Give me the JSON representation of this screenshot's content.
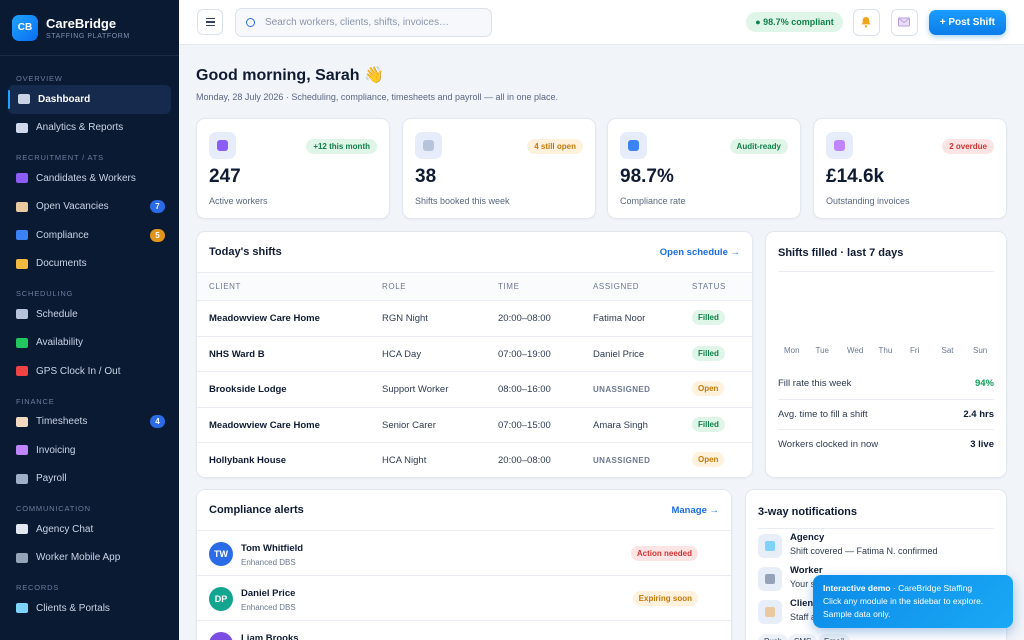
{
  "brand": {
    "initials": "CB",
    "name": "CareBridge",
    "subtitle": "STAFFING PLATFORM"
  },
  "sidebar": {
    "sections": [
      {
        "title": "OVERVIEW",
        "items": [
          {
            "label": "Dashboard",
            "icon": "dashboard-icon",
            "active": true
          },
          {
            "label": "Analytics & Reports",
            "icon": "chart-icon"
          }
        ]
      },
      {
        "title": "RECRUITMENT / ATS",
        "items": [
          {
            "label": "Candidates & Workers",
            "icon": "people-icon"
          },
          {
            "label": "Open Vacancies",
            "icon": "clipboard-icon",
            "badge": "7",
            "badge_color": "#2b6be8"
          },
          {
            "label": "Compliance",
            "icon": "shield-icon",
            "badge": "5",
            "badge_color": "#e0951b"
          },
          {
            "label": "Documents",
            "icon": "folder-icon"
          }
        ]
      },
      {
        "title": "SCHEDULING",
        "items": [
          {
            "label": "Schedule",
            "icon": "calendar-icon"
          },
          {
            "label": "Availability",
            "icon": "check-icon"
          },
          {
            "label": "GPS Clock In / Out",
            "icon": "pin-icon"
          }
        ]
      },
      {
        "title": "FINANCE",
        "items": [
          {
            "label": "Timesheets",
            "icon": "timesheet-icon",
            "badge": "4",
            "badge_color": "#2b6be8"
          },
          {
            "label": "Invoicing",
            "icon": "invoice-icon"
          },
          {
            "label": "Payroll",
            "icon": "bank-icon"
          }
        ]
      },
      {
        "title": "COMMUNICATION",
        "items": [
          {
            "label": "Agency Chat",
            "icon": "chat-icon"
          },
          {
            "label": "Worker Mobile App",
            "icon": "phone-icon"
          }
        ]
      },
      {
        "title": "RECORDS",
        "items": [
          {
            "label": "Clients & Portals",
            "icon": "building-icon"
          }
        ]
      }
    ]
  },
  "topbar": {
    "search_placeholder": "Search workers, clients, shifts, invoices…",
    "compliance_pill": "● 98.7% compliant",
    "post_shift_label": "+ Post Shift"
  },
  "greeting": {
    "title": "Good morning, Sarah 👋",
    "subtitle": "Monday, 28 July 2026 · Scheduling, compliance, timesheets and payroll — all in one place."
  },
  "kpis": [
    {
      "value": "247",
      "label": "Active workers",
      "tag": "+12 this month",
      "tag_bg": "#dff5e8",
      "tag_fg": "#12804b",
      "icon": "people-icon",
      "icon_bg": "#e7ecfb"
    },
    {
      "value": "38",
      "label": "Shifts booked this week",
      "tag": "4 still open",
      "tag_bg": "#fff1dc",
      "tag_fg": "#c57a0b",
      "icon": "calendar-icon",
      "icon_bg": "#e7ecfb"
    },
    {
      "value": "98.7%",
      "label": "Compliance rate",
      "tag": "Audit-ready",
      "tag_bg": "#dff5e8",
      "tag_fg": "#12804b",
      "icon": "shield-icon",
      "icon_bg": "#e7ecfb"
    },
    {
      "value": "£14.6k",
      "label": "Outstanding invoices",
      "tag": "2 overdue",
      "tag_bg": "#fde4e4",
      "tag_fg": "#d13434",
      "icon": "invoice-icon",
      "icon_bg": "#e7ecfb"
    }
  ],
  "shifts": {
    "title": "Today's shifts",
    "link": "Open schedule →",
    "columns": [
      "CLIENT",
      "ROLE",
      "TIME",
      "ASSIGNED",
      "STATUS"
    ],
    "rows": [
      {
        "client": "Meadowview Care Home",
        "role": "RGN Night",
        "time": "20:00–08:00",
        "assigned": "Fatima Noor",
        "status": "Filled"
      },
      {
        "client": "NHS Ward B",
        "role": "HCA Day",
        "time": "07:00–19:00",
        "assigned": "Daniel Price",
        "status": "Filled"
      },
      {
        "client": "Brookside Lodge",
        "role": "Support Worker",
        "time": "08:00–16:00",
        "assigned": "UNASSIGNED",
        "status": "Open"
      },
      {
        "client": "Meadowview Care Home",
        "role": "Senior Carer",
        "time": "07:00–15:00",
        "assigned": "Amara Singh",
        "status": "Filled"
      },
      {
        "client": "Hollybank House",
        "role": "HCA Night",
        "time": "20:00–08:00",
        "assigned": "UNASSIGNED",
        "status": "Open"
      }
    ]
  },
  "filled": {
    "title": "Shifts filled · last 7 days",
    "days": [
      "Mon",
      "Tue",
      "Wed",
      "Thu",
      "Fri",
      "Sat",
      "Sun"
    ],
    "stats": [
      {
        "label": "Fill rate this week",
        "value": "94%",
        "color": "#12a05a"
      },
      {
        "label": "Avg. time to fill a shift",
        "value": "2.4 hrs",
        "color": "#0f1b33"
      },
      {
        "label": "Workers clocked in now",
        "value": "3 live",
        "color": "#0f1b33"
      }
    ]
  },
  "compliance": {
    "title": "Compliance alerts",
    "link": "Manage →",
    "items": [
      {
        "initials": "TW",
        "name": "Tom Whitfield",
        "detail": "Enhanced DBS",
        "status": "Action needed",
        "avatar_bg": "#2b6be8",
        "status_bg": "#fde4e4",
        "status_fg": "#d13434"
      },
      {
        "initials": "DP",
        "name": "Daniel Price",
        "detail": "Enhanced DBS",
        "status": "Expiring soon",
        "avatar_bg": "#13a58f",
        "status_bg": "#fff1dc",
        "status_fg": "#c57a0b"
      },
      {
        "initials": "LB",
        "name": "Liam Brooks",
        "detail": "",
        "status": "",
        "avatar_bg": "#7b4de3",
        "status_bg": "#e7ecfb",
        "status_fg": "#2b6be8"
      }
    ]
  },
  "notifications": {
    "title": "3-way notifications",
    "items": [
      {
        "heading": "Agency",
        "text": "Shift covered — Fatima N. confirmed",
        "icon": "building-icon"
      },
      {
        "heading": "Worker",
        "text": "Your s",
        "icon": "phone-icon"
      },
      {
        "heading": "Client",
        "text": "Staff a",
        "icon": "clipboard-icon"
      }
    ],
    "chips": [
      "Push",
      "SMS",
      "Email"
    ]
  },
  "toast": {
    "bold": "Interactive demo",
    "rest": " · CareBridge Staffing",
    "line2": "Click any module in the sidebar to explore.",
    "line3": "Sample data only."
  },
  "colors": {
    "sidebar_bg": "#0b1a33",
    "accent": "#0a7de8",
    "success": "#12804b",
    "warning": "#c57a0b",
    "danger": "#d13434"
  }
}
